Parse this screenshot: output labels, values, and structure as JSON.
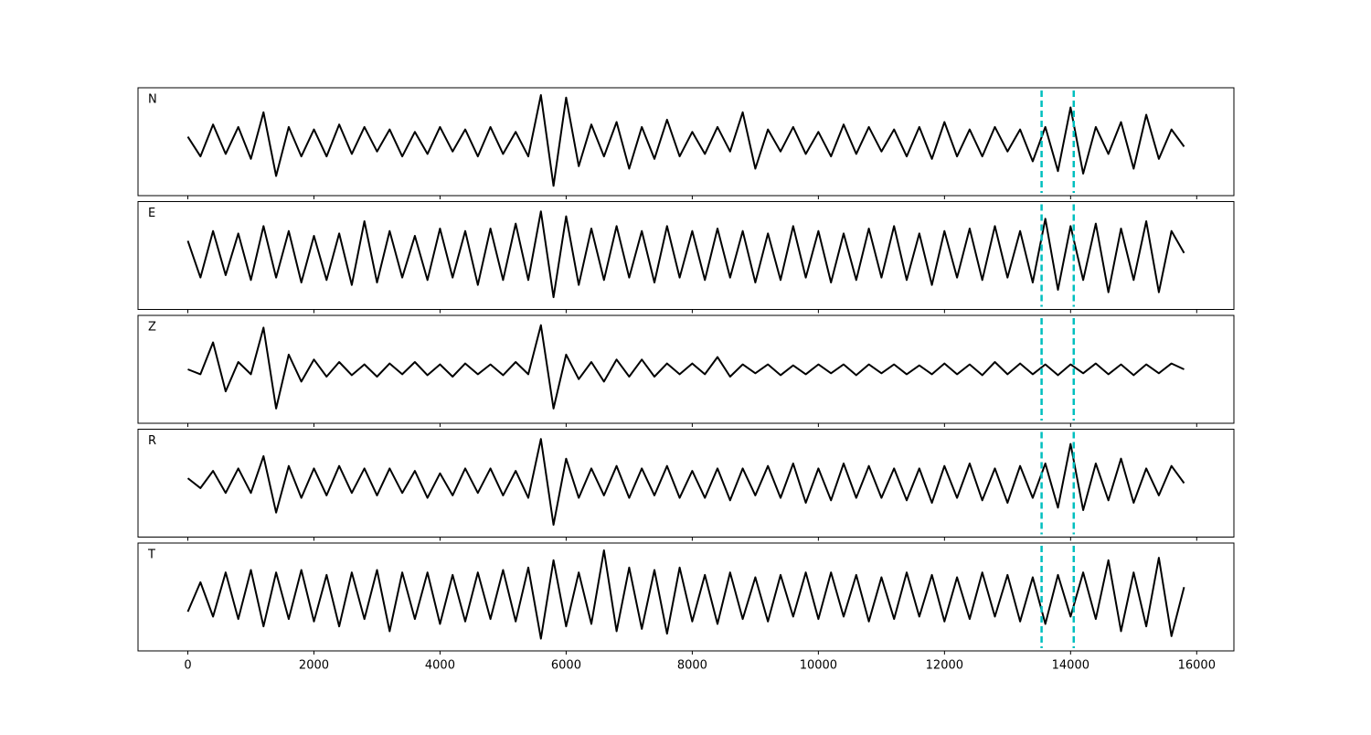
{
  "chart_data": {
    "type": "line",
    "x": [
      0,
      200,
      400,
      600,
      800,
      1000,
      1200,
      1400,
      1600,
      1800,
      2000,
      2200,
      2400,
      2600,
      2800,
      3000,
      3200,
      3400,
      3600,
      3800,
      4000,
      4200,
      4400,
      4600,
      4800,
      5000,
      5200,
      5400,
      5600,
      5800,
      6000,
      6200,
      6400,
      6600,
      6800,
      7000,
      7200,
      7400,
      7600,
      7800,
      8000,
      8200,
      8400,
      8600,
      8800,
      9000,
      9200,
      9400,
      9600,
      9800,
      10000,
      10200,
      10400,
      10600,
      10800,
      11000,
      11200,
      11400,
      11600,
      11800,
      12000,
      12200,
      12400,
      12600,
      12800,
      13000,
      13200,
      13400,
      13600,
      13800,
      14000,
      14200,
      14400,
      14600,
      14800,
      15000,
      15200,
      15400,
      15600,
      15800
    ],
    "series": [
      {
        "name": "N",
        "color": "#000000",
        "values": [
          0.1,
          -0.3,
          0.35,
          -0.25,
          0.3,
          -0.35,
          0.6,
          -0.7,
          0.3,
          -0.3,
          0.25,
          -0.3,
          0.35,
          -0.25,
          0.3,
          -0.2,
          0.25,
          -0.3,
          0.2,
          -0.25,
          0.3,
          -0.2,
          0.25,
          -0.3,
          0.3,
          -0.25,
          0.2,
          -0.3,
          0.95,
          -0.9,
          0.9,
          -0.5,
          0.35,
          -0.3,
          0.4,
          -0.55,
          0.3,
          -0.35,
          0.45,
          -0.3,
          0.2,
          -0.25,
          0.3,
          -0.2,
          0.6,
          -0.55,
          0.25,
          -0.2,
          0.3,
          -0.25,
          0.2,
          -0.3,
          0.35,
          -0.25,
          0.3,
          -0.2,
          0.25,
          -0.3,
          0.3,
          -0.35,
          0.4,
          -0.3,
          0.25,
          -0.3,
          0.3,
          -0.2,
          0.25,
          -0.4,
          0.3,
          -0.6,
          0.7,
          -0.65,
          0.3,
          -0.25,
          0.4,
          -0.55,
          0.55,
          -0.35,
          0.25,
          -0.1
        ]
      },
      {
        "name": "E",
        "color": "#000000",
        "values": [
          0.3,
          -0.45,
          0.5,
          -0.4,
          0.45,
          -0.5,
          0.6,
          -0.45,
          0.5,
          -0.55,
          0.4,
          -0.5,
          0.45,
          -0.6,
          0.7,
          -0.55,
          0.5,
          -0.45,
          0.4,
          -0.5,
          0.55,
          -0.45,
          0.5,
          -0.6,
          0.55,
          -0.5,
          0.65,
          -0.5,
          0.9,
          -0.85,
          0.8,
          -0.6,
          0.55,
          -0.5,
          0.6,
          -0.45,
          0.5,
          -0.55,
          0.6,
          -0.45,
          0.5,
          -0.5,
          0.55,
          -0.45,
          0.5,
          -0.55,
          0.45,
          -0.5,
          0.6,
          -0.45,
          0.5,
          -0.55,
          0.45,
          -0.5,
          0.55,
          -0.45,
          0.6,
          -0.5,
          0.45,
          -0.6,
          0.5,
          -0.45,
          0.55,
          -0.5,
          0.6,
          -0.45,
          0.5,
          -0.55,
          0.75,
          -0.7,
          0.6,
          -0.5,
          0.65,
          -0.75,
          0.55,
          -0.5,
          0.7,
          -0.75,
          0.5,
          0.05
        ]
      },
      {
        "name": "Z",
        "color": "#000000",
        "values": [
          0.0,
          -0.1,
          0.55,
          -0.45,
          0.15,
          -0.1,
          0.85,
          -0.8,
          0.3,
          -0.25,
          0.2,
          -0.15,
          0.15,
          -0.12,
          0.1,
          -0.15,
          0.12,
          -0.1,
          0.15,
          -0.12,
          0.1,
          -0.15,
          0.12,
          -0.1,
          0.1,
          -0.12,
          0.15,
          -0.1,
          0.9,
          -0.8,
          0.3,
          -0.2,
          0.15,
          -0.25,
          0.2,
          -0.15,
          0.2,
          -0.15,
          0.12,
          -0.1,
          0.12,
          -0.1,
          0.25,
          -0.15,
          0.1,
          -0.08,
          0.1,
          -0.12,
          0.08,
          -0.1,
          0.1,
          -0.08,
          0.1,
          -0.12,
          0.1,
          -0.08,
          0.1,
          -0.1,
          0.08,
          -0.1,
          0.12,
          -0.1,
          0.1,
          -0.12,
          0.15,
          -0.1,
          0.12,
          -0.1,
          0.1,
          -0.12,
          0.1,
          -0.08,
          0.12,
          -0.1,
          0.1,
          -0.12,
          0.1,
          -0.08,
          0.12,
          0.0
        ]
      },
      {
        "name": "R",
        "color": "#000000",
        "values": [
          0.1,
          -0.1,
          0.25,
          -0.2,
          0.3,
          -0.2,
          0.55,
          -0.6,
          0.35,
          -0.3,
          0.3,
          -0.25,
          0.35,
          -0.2,
          0.3,
          -0.25,
          0.3,
          -0.2,
          0.25,
          -0.3,
          0.2,
          -0.25,
          0.3,
          -0.2,
          0.3,
          -0.25,
          0.25,
          -0.3,
          0.9,
          -0.85,
          0.5,
          -0.3,
          0.3,
          -0.25,
          0.35,
          -0.3,
          0.3,
          -0.25,
          0.35,
          -0.3,
          0.25,
          -0.3,
          0.3,
          -0.35,
          0.3,
          -0.25,
          0.35,
          -0.3,
          0.4,
          -0.4,
          0.3,
          -0.35,
          0.4,
          -0.3,
          0.35,
          -0.3,
          0.3,
          -0.35,
          0.3,
          -0.4,
          0.35,
          -0.3,
          0.4,
          -0.35,
          0.3,
          -0.4,
          0.35,
          -0.3,
          0.4,
          -0.5,
          0.8,
          -0.55,
          0.4,
          -0.35,
          0.5,
          -0.4,
          0.3,
          -0.25,
          0.35,
          0.0
        ]
      },
      {
        "name": "T",
        "color": "#000000",
        "values": [
          -0.3,
          0.3,
          -0.4,
          0.5,
          -0.45,
          0.55,
          -0.6,
          0.5,
          -0.45,
          0.55,
          -0.5,
          0.45,
          -0.6,
          0.5,
          -0.45,
          0.55,
          -0.7,
          0.5,
          -0.45,
          0.5,
          -0.55,
          0.45,
          -0.5,
          0.5,
          -0.45,
          0.55,
          -0.5,
          0.6,
          -0.85,
          0.75,
          -0.6,
          0.5,
          -0.55,
          0.95,
          -0.7,
          0.6,
          -0.65,
          0.55,
          -0.75,
          0.6,
          -0.5,
          0.45,
          -0.55,
          0.5,
          -0.45,
          0.4,
          -0.5,
          0.45,
          -0.4,
          0.5,
          -0.45,
          0.5,
          -0.4,
          0.45,
          -0.5,
          0.4,
          -0.45,
          0.5,
          -0.4,
          0.45,
          -0.5,
          0.4,
          -0.45,
          0.5,
          -0.4,
          0.45,
          -0.5,
          0.4,
          -0.55,
          0.45,
          -0.4,
          0.5,
          -0.45,
          0.75,
          -0.7,
          0.5,
          -0.6,
          0.8,
          -0.8,
          0.2
        ]
      }
    ],
    "xlim": [
      -790,
      16590
    ],
    "xticks": [
      0,
      2000,
      4000,
      6000,
      8000,
      10000,
      12000,
      14000,
      16000
    ],
    "ylim": [
      -1.1,
      1.1
    ],
    "vlines": [
      13540,
      14050
    ],
    "vline_color": "#00bfbf"
  }
}
